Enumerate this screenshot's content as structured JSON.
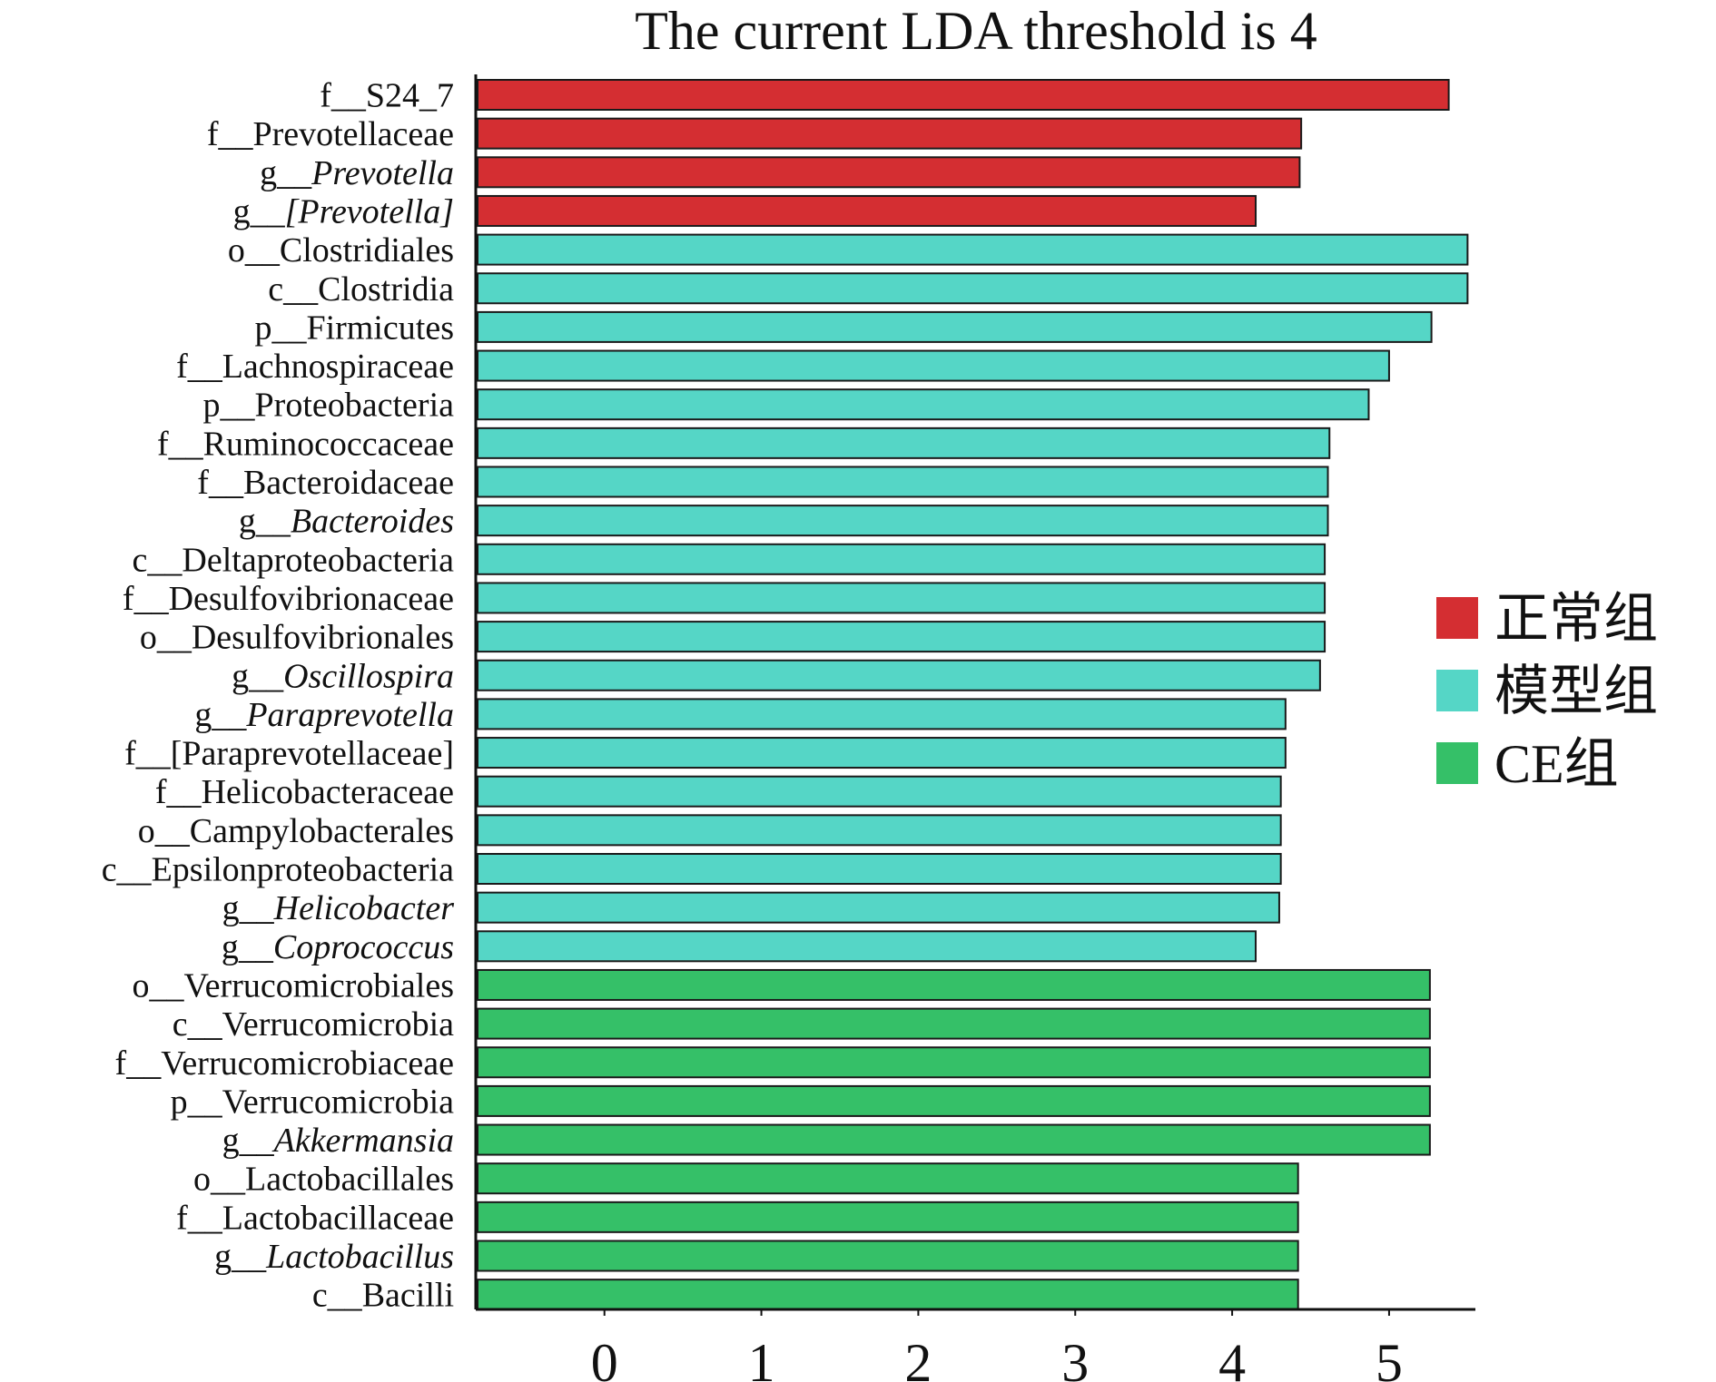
{
  "chart_data": {
    "type": "bar",
    "orientation": "horizontal",
    "title": "The current LDA threshold is 4",
    "xlabel": "",
    "ylabel": "",
    "xlim": [
      -0.82,
      5.55
    ],
    "xticks": [
      "0",
      "1",
      "2",
      "3",
      "4",
      "5"
    ],
    "legend_position": "right",
    "groups": [
      {
        "name": "正常组",
        "color": "#d42e32"
      },
      {
        "name": "模型组",
        "color": "#55d6c6"
      },
      {
        "name": "CE组",
        "color": "#35c068"
      }
    ],
    "bars": [
      {
        "rank": "f",
        "taxon": "S24_7",
        "italic": false,
        "value": 5.38,
        "group": 0
      },
      {
        "rank": "f",
        "taxon": "Prevotellaceae",
        "italic": false,
        "value": 4.44,
        "group": 0
      },
      {
        "rank": "g",
        "taxon": "Prevotella",
        "italic": true,
        "value": 4.43,
        "group": 0
      },
      {
        "rank": "g",
        "taxon": "[Prevotella]",
        "italic": true,
        "value": 4.15,
        "group": 0
      },
      {
        "rank": "o",
        "taxon": "Clostridiales",
        "italic": false,
        "value": 5.5,
        "group": 1
      },
      {
        "rank": "c",
        "taxon": "Clostridia",
        "italic": false,
        "value": 5.5,
        "group": 1
      },
      {
        "rank": "p",
        "taxon": "Firmicutes",
        "italic": false,
        "value": 5.27,
        "group": 1
      },
      {
        "rank": "f",
        "taxon": "Lachnospiraceae",
        "italic": false,
        "value": 5.0,
        "group": 1
      },
      {
        "rank": "p",
        "taxon": "Proteobacteria",
        "italic": false,
        "value": 4.87,
        "group": 1
      },
      {
        "rank": "f",
        "taxon": "Ruminococcaceae",
        "italic": false,
        "value": 4.62,
        "group": 1
      },
      {
        "rank": "f",
        "taxon": "Bacteroidaceae",
        "italic": false,
        "value": 4.61,
        "group": 1
      },
      {
        "rank": "g",
        "taxon": "Bacteroides",
        "italic": true,
        "value": 4.61,
        "group": 1
      },
      {
        "rank": "c",
        "taxon": "Deltaproteobacteria",
        "italic": false,
        "value": 4.59,
        "group": 1
      },
      {
        "rank": "f",
        "taxon": "Desulfovibrionaceae",
        "italic": false,
        "value": 4.59,
        "group": 1
      },
      {
        "rank": "o",
        "taxon": "Desulfovibrionales",
        "italic": false,
        "value": 4.59,
        "group": 1
      },
      {
        "rank": "g",
        "taxon": "Oscillospira",
        "italic": true,
        "value": 4.56,
        "group": 1
      },
      {
        "rank": "g",
        "taxon": "Paraprevotella",
        "italic": true,
        "value": 4.34,
        "group": 1
      },
      {
        "rank": "f",
        "taxon": "[Paraprevotellaceae]",
        "italic": false,
        "value": 4.34,
        "group": 1
      },
      {
        "rank": "f",
        "taxon": "Helicobacteraceae",
        "italic": false,
        "value": 4.31,
        "group": 1
      },
      {
        "rank": "o",
        "taxon": "Campylobacterales",
        "italic": false,
        "value": 4.31,
        "group": 1
      },
      {
        "rank": "c",
        "taxon": "Epsilonproteobacteria",
        "italic": false,
        "value": 4.31,
        "group": 1
      },
      {
        "rank": "g",
        "taxon": "Helicobacter",
        "italic": true,
        "value": 4.3,
        "group": 1
      },
      {
        "rank": "g",
        "taxon": "Coprococcus",
        "italic": true,
        "value": 4.15,
        "group": 1
      },
      {
        "rank": "o",
        "taxon": "Verrucomicrobiales",
        "italic": false,
        "value": 5.26,
        "group": 2
      },
      {
        "rank": "c",
        "taxon": "Verrucomicrobia",
        "italic": false,
        "value": 5.26,
        "group": 2
      },
      {
        "rank": "f",
        "taxon": "Verrucomicrobiaceae",
        "italic": false,
        "value": 5.26,
        "group": 2
      },
      {
        "rank": "p",
        "taxon": "Verrucomicrobia",
        "italic": false,
        "value": 5.26,
        "group": 2
      },
      {
        "rank": "g",
        "taxon": "Akkermansia",
        "italic": true,
        "value": 5.26,
        "group": 2
      },
      {
        "rank": "o",
        "taxon": "Lactobacillales",
        "italic": false,
        "value": 4.42,
        "group": 2
      },
      {
        "rank": "f",
        "taxon": "Lactobacillaceae",
        "italic": false,
        "value": 4.42,
        "group": 2
      },
      {
        "rank": "g",
        "taxon": "Lactobacillus",
        "italic": true,
        "value": 4.42,
        "group": 2
      },
      {
        "rank": "c",
        "taxon": "Bacilli",
        "italic": false,
        "value": 4.42,
        "group": 2
      }
    ]
  }
}
